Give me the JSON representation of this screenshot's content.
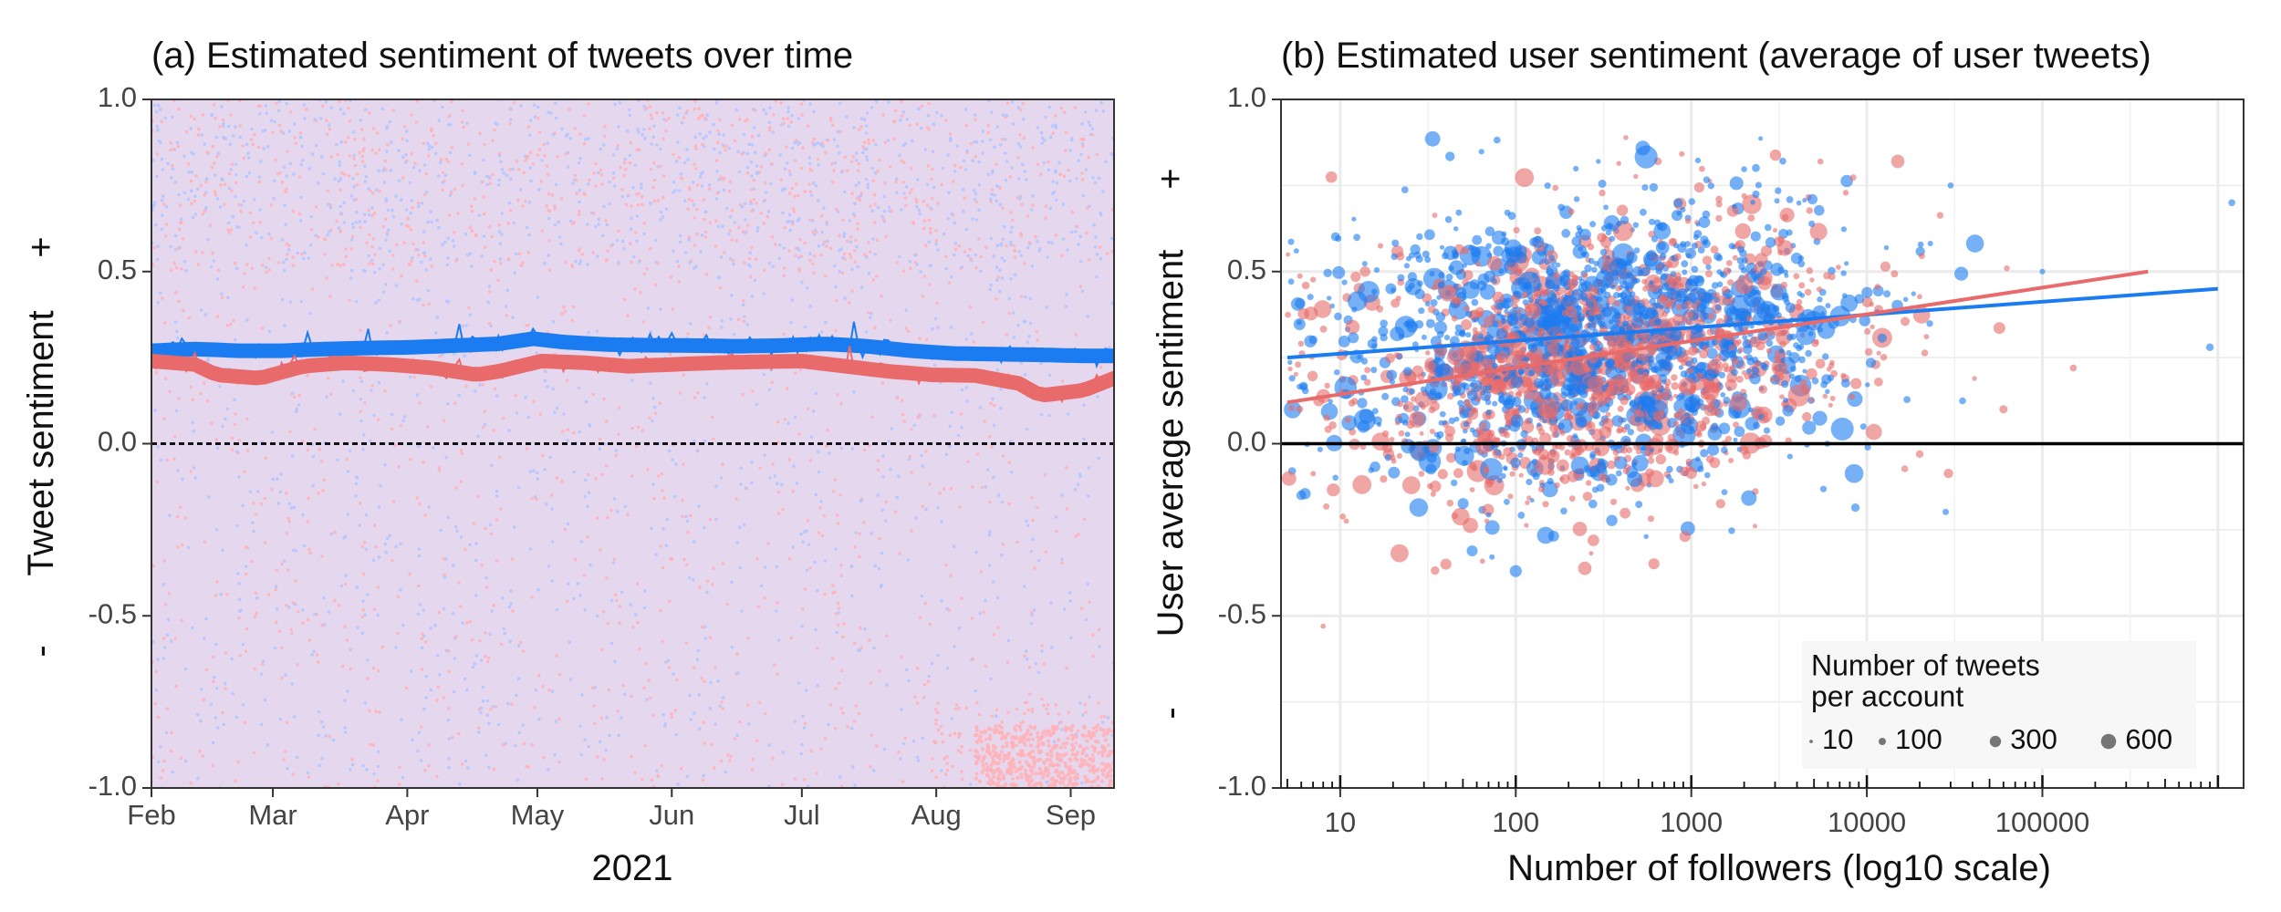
{
  "chart_data": [
    {
      "type": "scatter",
      "title": "(a) Estimated sentiment of tweets over time",
      "xlabel": "2021",
      "ylabel": "Tweet sentiment",
      "ylabel_minus": "-",
      "ylabel_plus": "+",
      "ylim": [
        -1.0,
        1.0
      ],
      "yticks": [
        "-1.0",
        "-0.5",
        "0.0",
        "0.5",
        "1.0"
      ],
      "ytick_values": [
        -1.0,
        -0.5,
        0.0,
        0.5,
        1.0
      ],
      "xticks": [
        "Feb",
        "Mar",
        "Apr",
        "May",
        "Jun",
        "Jul",
        "Aug",
        "Sep"
      ],
      "xtick_days": [
        0,
        28,
        59,
        89,
        120,
        150,
        181,
        212
      ],
      "xlim_days": [
        0,
        222
      ],
      "hline": 0.0,
      "colors": {
        "blue": "#1a7cf0",
        "red": "#e86a6a",
        "blue_points": "#b3c6ff",
        "red_points": "#ffb3b8"
      },
      "series": [
        {
          "name": "blue smoothed",
          "color": "#1a7cf0",
          "x_days": [
            0,
            10,
            20,
            30,
            40,
            50,
            60,
            70,
            80,
            88,
            95,
            105,
            115,
            125,
            135,
            145,
            155,
            165,
            175,
            185,
            195,
            205,
            215,
            222
          ],
          "values": [
            0.27,
            0.275,
            0.27,
            0.27,
            0.275,
            0.278,
            0.28,
            0.285,
            0.29,
            0.305,
            0.295,
            0.288,
            0.286,
            0.285,
            0.283,
            0.285,
            0.29,
            0.283,
            0.27,
            0.262,
            0.26,
            0.258,
            0.255,
            0.255
          ]
        },
        {
          "name": "red smoothed",
          "color": "#e86a6a",
          "x_days": [
            0,
            10,
            15,
            25,
            35,
            45,
            55,
            65,
            75,
            80,
            90,
            100,
            110,
            120,
            130,
            140,
            150,
            160,
            170,
            180,
            190,
            200,
            205,
            215,
            222
          ],
          "values": [
            0.24,
            0.23,
            0.2,
            0.19,
            0.225,
            0.235,
            0.23,
            0.22,
            0.2,
            0.21,
            0.24,
            0.235,
            0.225,
            0.23,
            0.235,
            0.238,
            0.24,
            0.225,
            0.21,
            0.2,
            0.198,
            0.175,
            0.14,
            0.155,
            0.19
          ]
        }
      ]
    },
    {
      "type": "scatter",
      "title": "(b) Estimated user sentiment (average of user tweets)",
      "xlabel": "Number of followers (log10 scale)",
      "ylabel": "User average sentiment",
      "ylabel_minus": "-",
      "ylabel_plus": "+",
      "ylim": [
        -1.0,
        1.0
      ],
      "yticks": [
        "-1.0",
        "-0.5",
        "0.0",
        "0.5",
        "1.0"
      ],
      "ytick_values": [
        -1.0,
        -0.5,
        0.0,
        0.5,
        1.0
      ],
      "xscale": "log10",
      "xlim": [
        4.6,
        1400000
      ],
      "xticks": [
        "10",
        "100",
        "1000",
        "10000",
        "100000"
      ],
      "xtick_values": [
        10,
        100,
        1000,
        10000,
        100000
      ],
      "hline": 0.0,
      "regression_lines": [
        {
          "name": "blue fit",
          "color": "#1a7cf0",
          "x": [
            5,
            1000000
          ],
          "y": [
            0.25,
            0.45
          ]
        },
        {
          "name": "red fit",
          "color": "#e86a6a",
          "x": [
            5,
            400000
          ],
          "y": [
            0.12,
            0.5
          ]
        }
      ],
      "legend": {
        "title_line1": "Number of tweets",
        "title_line2": "per account",
        "position": "bottom-right",
        "entries": [
          "10",
          "100",
          "300",
          "600"
        ],
        "entry_values": [
          10,
          100,
          300,
          600
        ]
      },
      "outliers": [
        {
          "x": 1200000,
          "y": 0.7,
          "color": "#1a7cf0",
          "size": 30
        },
        {
          "x": 900000,
          "y": 0.28,
          "color": "#1a7cf0",
          "size": 40
        },
        {
          "x": 15000,
          "y": 0.82,
          "color": "#e86a6a",
          "size": 200
        },
        {
          "x": 30000,
          "y": 0.75,
          "color": "#1a7cf0",
          "size": 20
        },
        {
          "x": 150000,
          "y": 0.22,
          "color": "#e86a6a",
          "size": 30
        },
        {
          "x": 100000,
          "y": 0.5,
          "color": "#1a7cf0",
          "size": 15
        },
        {
          "x": 60000,
          "y": 0.1,
          "color": "#e86a6a",
          "size": 50
        },
        {
          "x": 20000,
          "y": -0.03,
          "color": "#e86a6a",
          "size": 40
        },
        {
          "x": 8,
          "y": -0.53,
          "color": "#e86a6a",
          "size": 10
        },
        {
          "x": 100,
          "y": -0.37,
          "color": "#1a7cf0",
          "size": 150
        },
        {
          "x": 40,
          "y": -0.35,
          "color": "#e86a6a",
          "size": 120
        },
        {
          "x": 6,
          "y": -0.15,
          "color": "#1a7cf0",
          "size": 80
        }
      ]
    }
  ]
}
